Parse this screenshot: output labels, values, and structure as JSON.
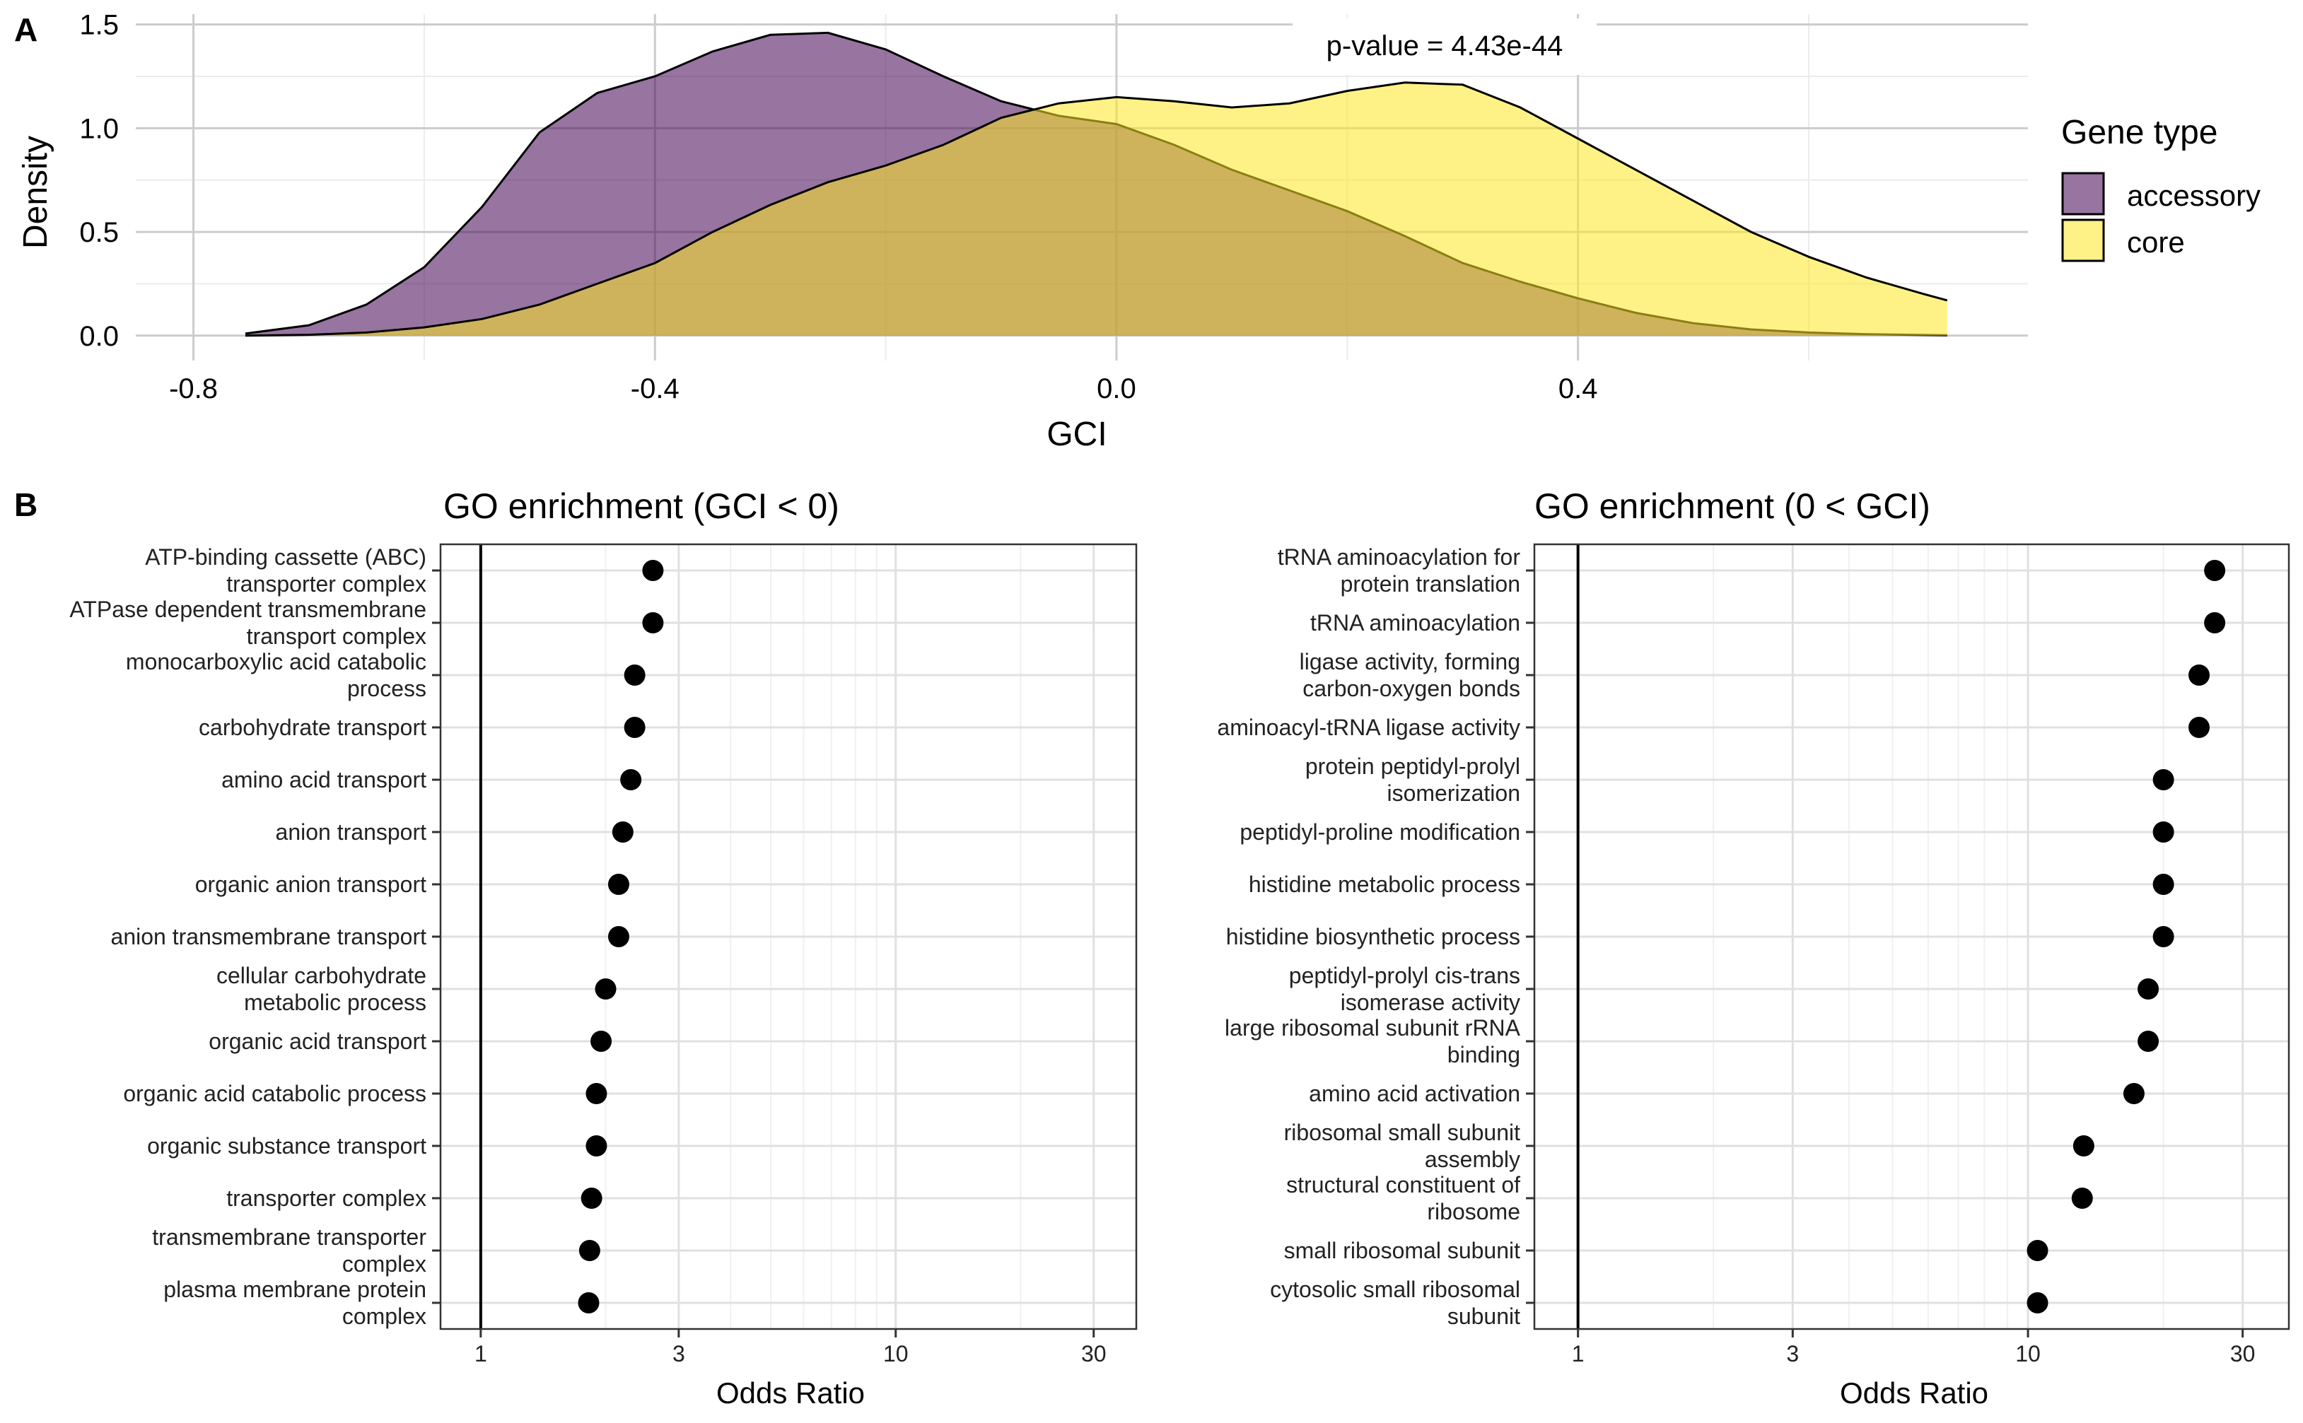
{
  "panel_labels": {
    "a": "A",
    "b": "B"
  },
  "chart_data": [
    {
      "type": "area",
      "panel": "A",
      "xlabel": "GCI",
      "ylabel": "Density",
      "xlim": [
        -0.85,
        0.79
      ],
      "ylim": [
        -0.12,
        1.55
      ],
      "x_ticks": [
        -0.8,
        -0.4,
        0.0,
        0.4
      ],
      "x_tick_labels": [
        "-0.8",
        "-0.4",
        "0.0",
        "0.4"
      ],
      "y_ticks": [
        0,
        0.5,
        1.0,
        1.5
      ],
      "y_tick_labels": [
        "0.0",
        "0.5",
        "1.0",
        "1.5"
      ],
      "grid": true,
      "legend_title": "Gene type",
      "legend_position": "right",
      "annotation": "p-value  = 4.43e-44",
      "series": [
        {
          "name": "accessory",
          "color": "#440154",
          "opacity": 0.55,
          "x": [
            -0.755,
            -0.7,
            -0.65,
            -0.6,
            -0.55,
            -0.5,
            -0.45,
            -0.4,
            -0.35,
            -0.3,
            -0.25,
            -0.2,
            -0.15,
            -0.1,
            -0.05,
            0.0,
            0.05,
            0.1,
            0.15,
            0.2,
            0.25,
            0.3,
            0.35,
            0.4,
            0.45,
            0.5,
            0.55,
            0.6,
            0.65,
            0.7,
            0.72
          ],
          "y": [
            0.01,
            0.05,
            0.15,
            0.33,
            0.62,
            0.98,
            1.17,
            1.25,
            1.37,
            1.45,
            1.46,
            1.38,
            1.25,
            1.13,
            1.06,
            1.02,
            0.92,
            0.8,
            0.7,
            0.6,
            0.48,
            0.35,
            0.26,
            0.18,
            0.11,
            0.06,
            0.03,
            0.015,
            0.007,
            0.003,
            0.002
          ]
        },
        {
          "name": "core",
          "color": "#FDE725",
          "opacity": 0.55,
          "x": [
            -0.755,
            -0.7,
            -0.65,
            -0.6,
            -0.55,
            -0.5,
            -0.45,
            -0.4,
            -0.35,
            -0.3,
            -0.25,
            -0.2,
            -0.15,
            -0.1,
            -0.05,
            0.0,
            0.05,
            0.1,
            0.15,
            0.2,
            0.25,
            0.3,
            0.35,
            0.4,
            0.45,
            0.5,
            0.55,
            0.6,
            0.65,
            0.7,
            0.72
          ],
          "y": [
            0.0,
            0.004,
            0.015,
            0.04,
            0.08,
            0.15,
            0.25,
            0.35,
            0.5,
            0.63,
            0.74,
            0.82,
            0.92,
            1.05,
            1.12,
            1.15,
            1.13,
            1.1,
            1.12,
            1.18,
            1.22,
            1.21,
            1.1,
            0.95,
            0.8,
            0.65,
            0.5,
            0.38,
            0.28,
            0.2,
            0.17
          ]
        }
      ]
    },
    {
      "type": "scatter",
      "panel": "B-left",
      "title": "GO enrichment (GCI < 0)",
      "xlabel": "Odds Ratio",
      "x_scale": "log",
      "xlim": [
        0.8,
        38
      ],
      "x_ticks": [
        1,
        3,
        10,
        30
      ],
      "x_tick_labels": [
        "1",
        "3",
        "10",
        "30"
      ],
      "reference_line_x": 1,
      "grid": true,
      "categories": [
        [
          "ATP-binding cassette (ABC)",
          "transporter complex"
        ],
        [
          "ATPase dependent transmembrane",
          "transport complex"
        ],
        [
          "monocarboxylic acid catabolic",
          "process"
        ],
        [
          "carbohydrate transport"
        ],
        [
          "amino acid transport"
        ],
        [
          "anion transport"
        ],
        [
          "organic anion transport"
        ],
        [
          "anion transmembrane transport"
        ],
        [
          "cellular carbohydrate",
          "metabolic process"
        ],
        [
          "organic acid transport"
        ],
        [
          "organic acid catabolic process"
        ],
        [
          "organic substance transport"
        ],
        [
          "transporter complex"
        ],
        [
          "transmembrane transporter",
          "complex"
        ],
        [
          "plasma membrane protein",
          "complex"
        ]
      ],
      "values": [
        2.6,
        2.6,
        2.35,
        2.35,
        2.3,
        2.2,
        2.15,
        2.15,
        2.0,
        1.95,
        1.9,
        1.9,
        1.85,
        1.83,
        1.82
      ]
    },
    {
      "type": "scatter",
      "panel": "B-right",
      "title": "GO enrichment (0 < GCI)",
      "xlabel": "Odds Ratio",
      "x_scale": "log",
      "xlim": [
        0.8,
        38
      ],
      "x_ticks": [
        1,
        3,
        10,
        30
      ],
      "x_tick_labels": [
        "1",
        "3",
        "10",
        "30"
      ],
      "reference_line_x": 1,
      "grid": true,
      "categories": [
        [
          "tRNA aminoacylation for",
          "protein translation"
        ],
        [
          "tRNA aminoacylation"
        ],
        [
          "ligase activity, forming",
          "carbon-oxygen bonds"
        ],
        [
          "aminoacyl-tRNA ligase activity"
        ],
        [
          "protein peptidyl-prolyl",
          "isomerization"
        ],
        [
          "peptidyl-proline modification"
        ],
        [
          "histidine metabolic process"
        ],
        [
          "histidine biosynthetic process"
        ],
        [
          "peptidyl-prolyl cis-trans",
          "isomerase activity"
        ],
        [
          "large ribosomal subunit rRNA",
          "binding"
        ],
        [
          "amino acid activation"
        ],
        [
          "ribosomal small subunit",
          "assembly"
        ],
        [
          "structural constituent of",
          "ribosome"
        ],
        [
          "small ribosomal subunit"
        ],
        [
          "cytosolic small ribosomal",
          "subunit"
        ]
      ],
      "values": [
        26,
        26,
        24,
        24,
        20,
        20,
        20,
        20,
        18.5,
        18.5,
        17.2,
        13.3,
        13.2,
        10.5,
        10.5
      ]
    }
  ]
}
